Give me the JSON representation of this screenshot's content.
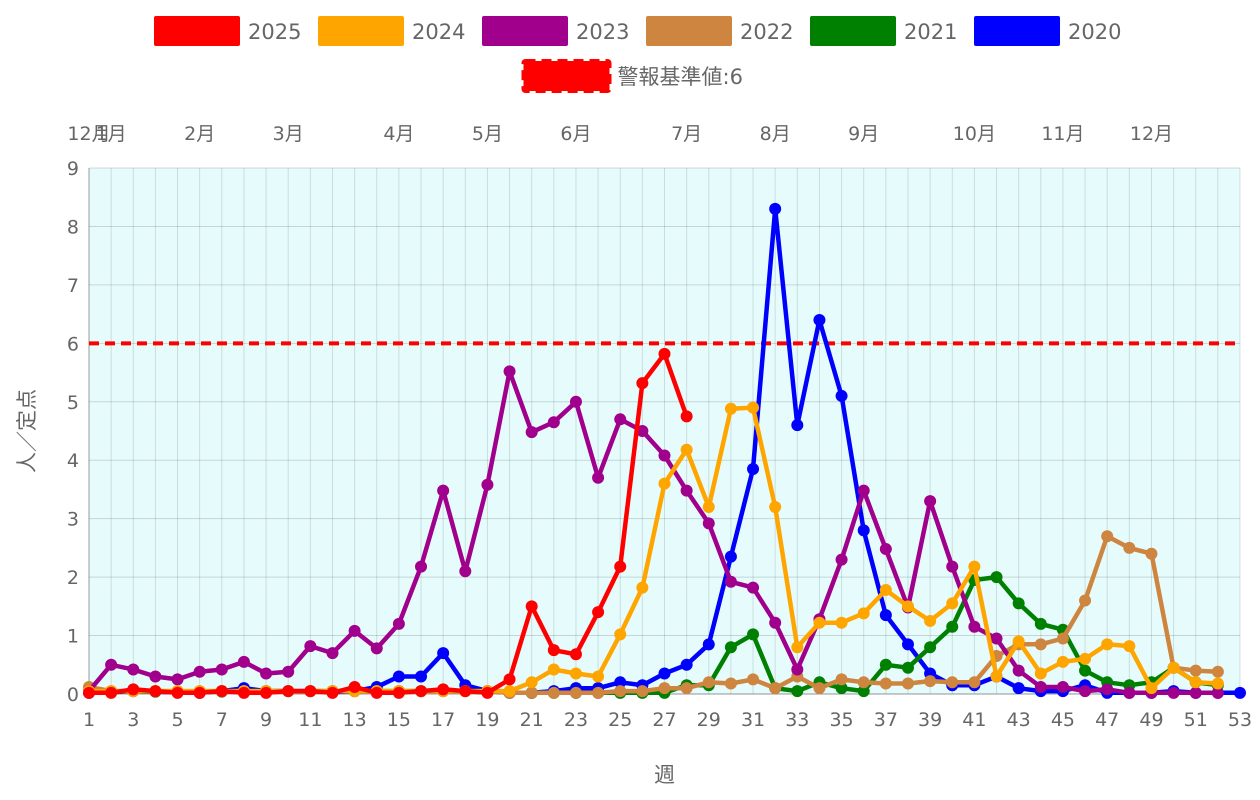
{
  "chart_data": {
    "type": "line",
    "xlabel": "週",
    "ylabel": "人／定点",
    "ylim": [
      0,
      9
    ],
    "xlim": [
      1,
      53
    ],
    "grid": true,
    "legend_position": "top",
    "background_color": "#e6fcfc",
    "x_ticks": [
      "1",
      "3",
      "5",
      "7",
      "9",
      "11",
      "13",
      "15",
      "17",
      "19",
      "21",
      "23",
      "25",
      "27",
      "29",
      "31",
      "33",
      "35",
      "37",
      "39",
      "41",
      "43",
      "45",
      "47",
      "49",
      "51",
      "53"
    ],
    "y_ticks": [
      "0",
      "1",
      "2",
      "3",
      "4",
      "5",
      "6",
      "7",
      "8",
      "9"
    ],
    "month_ticks": [
      {
        "label": "12月",
        "week": 1
      },
      {
        "label": "1月",
        "week": 2
      },
      {
        "label": "2月",
        "week": 6
      },
      {
        "label": "3月",
        "week": 10
      },
      {
        "label": "4月",
        "week": 15
      },
      {
        "label": "5月",
        "week": 19
      },
      {
        "label": "6月",
        "week": 23
      },
      {
        "label": "7月",
        "week": 28
      },
      {
        "label": "8月",
        "week": 32
      },
      {
        "label": "9月",
        "week": 36
      },
      {
        "label": "10月",
        "week": 41
      },
      {
        "label": "11月",
        "week": 45
      },
      {
        "label": "12月",
        "week": 49
      }
    ],
    "reference_line": {
      "label": "警報基準値:6",
      "value": 6,
      "color": "#ff0000"
    },
    "series": [
      {
        "name": "2020",
        "color": "#0000ff",
        "start_week": 1,
        "values": [
          0.02,
          0.03,
          0.05,
          0.04,
          0.03,
          0.02,
          0.05,
          0.1,
          0.05,
          0.05,
          0.05,
          0.03,
          0.05,
          0.12,
          0.3,
          0.3,
          0.7,
          0.15,
          0.05,
          0.02,
          0.02,
          0.05,
          0.1,
          0.1,
          0.2,
          0.15,
          0.35,
          0.5,
          0.85,
          2.35,
          3.85,
          8.3,
          4.6,
          6.4,
          5.1,
          2.8,
          1.35,
          0.85,
          0.35,
          0.15,
          0.15,
          0.3,
          0.1,
          0.05,
          0.05,
          0.15,
          0.02,
          0.02,
          0.02,
          0.05,
          0.02,
          0.02,
          0.02
        ]
      },
      {
        "name": "2021",
        "color": "#008000",
        "start_week": 1,
        "values": [
          0.05,
          0.04,
          0.05,
          0.04,
          0.04,
          0.04,
          0.04,
          0.04,
          0.05,
          0.05,
          0.05,
          0.05,
          0.05,
          0.05,
          0.05,
          0.05,
          0.05,
          0.05,
          0.05,
          0.02,
          0.02,
          0.02,
          0.02,
          0.02,
          0.02,
          0.02,
          0.02,
          0.15,
          0.15,
          0.8,
          1.02,
          0.1,
          0.05,
          0.2,
          0.1,
          0.05,
          0.5,
          0.45,
          0.8,
          1.15,
          1.95,
          2.0,
          1.55,
          1.2,
          1.1,
          0.4,
          0.2,
          0.15,
          0.2,
          0.45,
          0.2,
          0.15
        ]
      },
      {
        "name": "2022",
        "color": "#cd853f",
        "start_week": 1,
        "values": [
          0.12,
          0.05,
          0.05,
          0.05,
          0.05,
          0.05,
          0.05,
          0.05,
          0.05,
          0.05,
          0.05,
          0.05,
          0.05,
          0.05,
          0.05,
          0.05,
          0.05,
          0.05,
          0.05,
          0.02,
          0.02,
          0.02,
          0.02,
          0.02,
          0.05,
          0.05,
          0.1,
          0.1,
          0.2,
          0.18,
          0.25,
          0.1,
          0.3,
          0.1,
          0.25,
          0.2,
          0.18,
          0.18,
          0.22,
          0.2,
          0.2,
          0.65,
          0.85,
          0.85,
          0.95,
          1.6,
          2.7,
          2.5,
          2.4,
          0.45,
          0.4,
          0.38
        ]
      },
      {
        "name": "2023",
        "color": "#a0008c",
        "start_week": 1,
        "values": [
          0.05,
          0.5,
          0.42,
          0.3,
          0.25,
          0.38,
          0.42,
          0.55,
          0.35,
          0.38,
          0.82,
          0.7,
          1.08,
          0.78,
          1.2,
          2.18,
          3.48,
          2.1,
          3.58,
          5.52,
          4.48,
          4.65,
          5.0,
          3.7,
          4.7,
          4.5,
          4.08,
          3.48,
          2.92,
          1.92,
          1.82,
          1.22,
          0.42,
          1.28,
          2.3,
          3.48,
          2.48,
          1.48,
          3.3,
          2.18,
          1.15,
          0.95,
          0.4,
          0.12,
          0.12,
          0.05,
          0.08,
          0.02,
          0.02,
          0.02,
          0.02,
          0.02
        ]
      },
      {
        "name": "2024",
        "color": "#ffa500",
        "start_week": 1,
        "values": [
          0.05,
          0.05,
          0.05,
          0.05,
          0.05,
          0.05,
          0.05,
          0.05,
          0.05,
          0.05,
          0.05,
          0.05,
          0.05,
          0.05,
          0.05,
          0.05,
          0.05,
          0.05,
          0.05,
          0.05,
          0.2,
          0.42,
          0.35,
          0.3,
          1.02,
          1.82,
          3.6,
          4.18,
          3.2,
          4.88,
          4.9,
          3.2,
          0.8,
          1.22,
          1.22,
          1.38,
          1.78,
          1.5,
          1.25,
          1.55,
          2.18,
          0.3,
          0.9,
          0.35,
          0.55,
          0.6,
          0.85,
          0.82,
          0.1,
          0.45,
          0.2,
          0.18
        ]
      },
      {
        "name": "2025",
        "color": "#ff0000",
        "start_week": 1,
        "values": [
          0.02,
          0.02,
          0.08,
          0.05,
          0.02,
          0.02,
          0.05,
          0.02,
          0.02,
          0.05,
          0.05,
          0.02,
          0.12,
          0.02,
          0.02,
          0.05,
          0.08,
          0.05,
          0.02,
          0.25,
          1.5,
          0.75,
          0.68,
          1.4,
          2.18,
          5.32,
          5.82,
          4.75
        ]
      }
    ]
  }
}
